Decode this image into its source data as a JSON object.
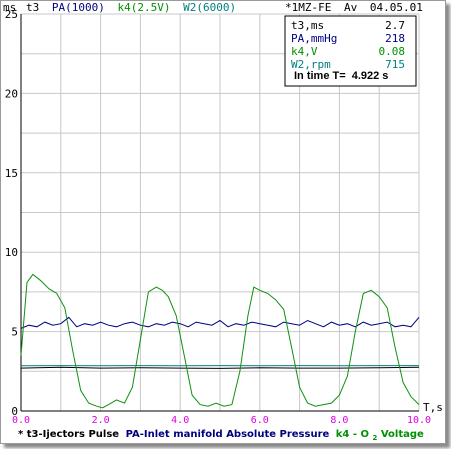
{
  "header": {
    "units_label": "ms",
    "series_scales": [
      {
        "text": "t3",
        "color": "#000000"
      },
      {
        "text": "PA(1000)",
        "color": "#000080"
      },
      {
        "text": "k4(2.5V)",
        "color": "#009000"
      },
      {
        "text": "W2(6000)",
        "color": "#008080"
      }
    ],
    "engine": "*1MZ-FE",
    "mode": "Av",
    "date": "04.05.01"
  },
  "info_box": {
    "rows": [
      {
        "label": "t3,ms",
        "value": "2.7",
        "color": "#000000"
      },
      {
        "label": "PA,mmHg",
        "value": "218",
        "color": "#000080"
      },
      {
        "label": "k4,V",
        "value": "0.08",
        "color": "#009000"
      },
      {
        "label": "W2,rpm",
        "value": "715",
        "color": "#008080"
      }
    ],
    "in_time_label": "In time T=",
    "in_time_value": "4.922 s"
  },
  "x_axis_title": "T,s",
  "legend": {
    "t3_prefix": "*",
    "t3": "t3-Ijectors Pulse",
    "pa": "PA-Inlet manifold Absolute Pressure",
    "k4_prefix": "k4 - O",
    "k4_sub": "2",
    "k4_suffix": " Voltage"
  },
  "colors": {
    "t3": "#000000",
    "pa": "#000080",
    "k4": "#109010",
    "w2": "#008080",
    "grid": "#c8c8c8",
    "x_ticks": "#e000e0"
  },
  "chart_data": {
    "type": "line",
    "xlim": [
      0,
      10
    ],
    "ylim": [
      0,
      25
    ],
    "x_ticks": [
      "0.0",
      "2.0",
      "4.0",
      "6.0",
      "8.0",
      "10.0"
    ],
    "y_ticks": [
      "0",
      "5",
      "10",
      "15",
      "20",
      "25"
    ],
    "grid": true,
    "series": [
      {
        "name": "PA",
        "color": "#000080",
        "x": [
          0,
          0.2,
          0.4,
          0.6,
          0.8,
          1.0,
          1.2,
          1.4,
          1.6,
          1.8,
          2.0,
          2.2,
          2.4,
          2.6,
          2.8,
          3.0,
          3.2,
          3.4,
          3.6,
          3.8,
          4.0,
          4.2,
          4.4,
          4.6,
          4.8,
          5.0,
          5.2,
          5.4,
          5.6,
          5.8,
          6.0,
          6.2,
          6.4,
          6.6,
          6.8,
          7.0,
          7.2,
          7.4,
          7.6,
          7.8,
          8.0,
          8.2,
          8.4,
          8.6,
          8.8,
          9.0,
          9.2,
          9.4,
          9.6,
          9.8,
          10.0
        ],
        "y": [
          5.2,
          5.4,
          5.3,
          5.6,
          5.4,
          5.5,
          5.9,
          5.3,
          5.5,
          5.4,
          5.6,
          5.4,
          5.3,
          5.5,
          5.6,
          5.4,
          5.3,
          5.5,
          5.4,
          5.6,
          5.5,
          5.3,
          5.6,
          5.5,
          5.4,
          5.7,
          5.3,
          5.5,
          5.4,
          5.6,
          5.5,
          5.4,
          5.3,
          5.6,
          5.5,
          5.4,
          5.7,
          5.5,
          5.3,
          5.6,
          5.4,
          5.5,
          5.3,
          5.6,
          5.4,
          5.5,
          5.6,
          5.3,
          5.4,
          5.3,
          5.9
        ]
      },
      {
        "name": "t3",
        "color": "#000000",
        "x": [
          0,
          1,
          2,
          3,
          4,
          5,
          6,
          7,
          8,
          9,
          10
        ],
        "y": [
          2.7,
          2.75,
          2.7,
          2.72,
          2.7,
          2.68,
          2.72,
          2.7,
          2.7,
          2.72,
          2.75
        ]
      },
      {
        "name": "W2",
        "color": "#008080",
        "x": [
          0,
          1,
          2,
          3,
          4,
          5,
          6,
          7,
          8,
          9,
          10
        ],
        "y": [
          2.85,
          2.86,
          2.85,
          2.86,
          2.85,
          2.86,
          2.85,
          2.86,
          2.85,
          2.86,
          2.86
        ]
      },
      {
        "name": "k4",
        "color": "#109010",
        "x": [
          0,
          0.15,
          0.3,
          0.5,
          0.7,
          0.9,
          1.1,
          1.3,
          1.5,
          1.7,
          1.9,
          2.05,
          2.2,
          2.4,
          2.6,
          2.8,
          3.0,
          3.2,
          3.4,
          3.55,
          3.7,
          3.9,
          4.1,
          4.3,
          4.5,
          4.7,
          4.9,
          5.1,
          5.3,
          5.5,
          5.7,
          5.85,
          6.0,
          6.2,
          6.4,
          6.6,
          6.8,
          7.0,
          7.2,
          7.4,
          7.6,
          7.8,
          8.0,
          8.2,
          8.4,
          8.6,
          8.8,
          9.0,
          9.2,
          9.4,
          9.6,
          9.8,
          10.0
        ],
        "y": [
          3.5,
          8.1,
          8.6,
          8.2,
          7.7,
          7.4,
          6.5,
          3.8,
          1.3,
          0.5,
          0.3,
          0.2,
          0.4,
          0.7,
          0.5,
          1.5,
          4.5,
          7.5,
          7.8,
          7.6,
          7.2,
          6.0,
          3.5,
          1.0,
          0.4,
          0.3,
          0.5,
          0.3,
          0.4,
          2.5,
          6.0,
          7.8,
          7.6,
          7.4,
          7.0,
          6.4,
          4.0,
          1.5,
          0.5,
          0.3,
          0.4,
          0.5,
          1.0,
          2.2,
          5.0,
          7.4,
          7.6,
          7.2,
          6.5,
          4.0,
          1.8,
          0.9,
          0.4
        ]
      }
    ]
  }
}
